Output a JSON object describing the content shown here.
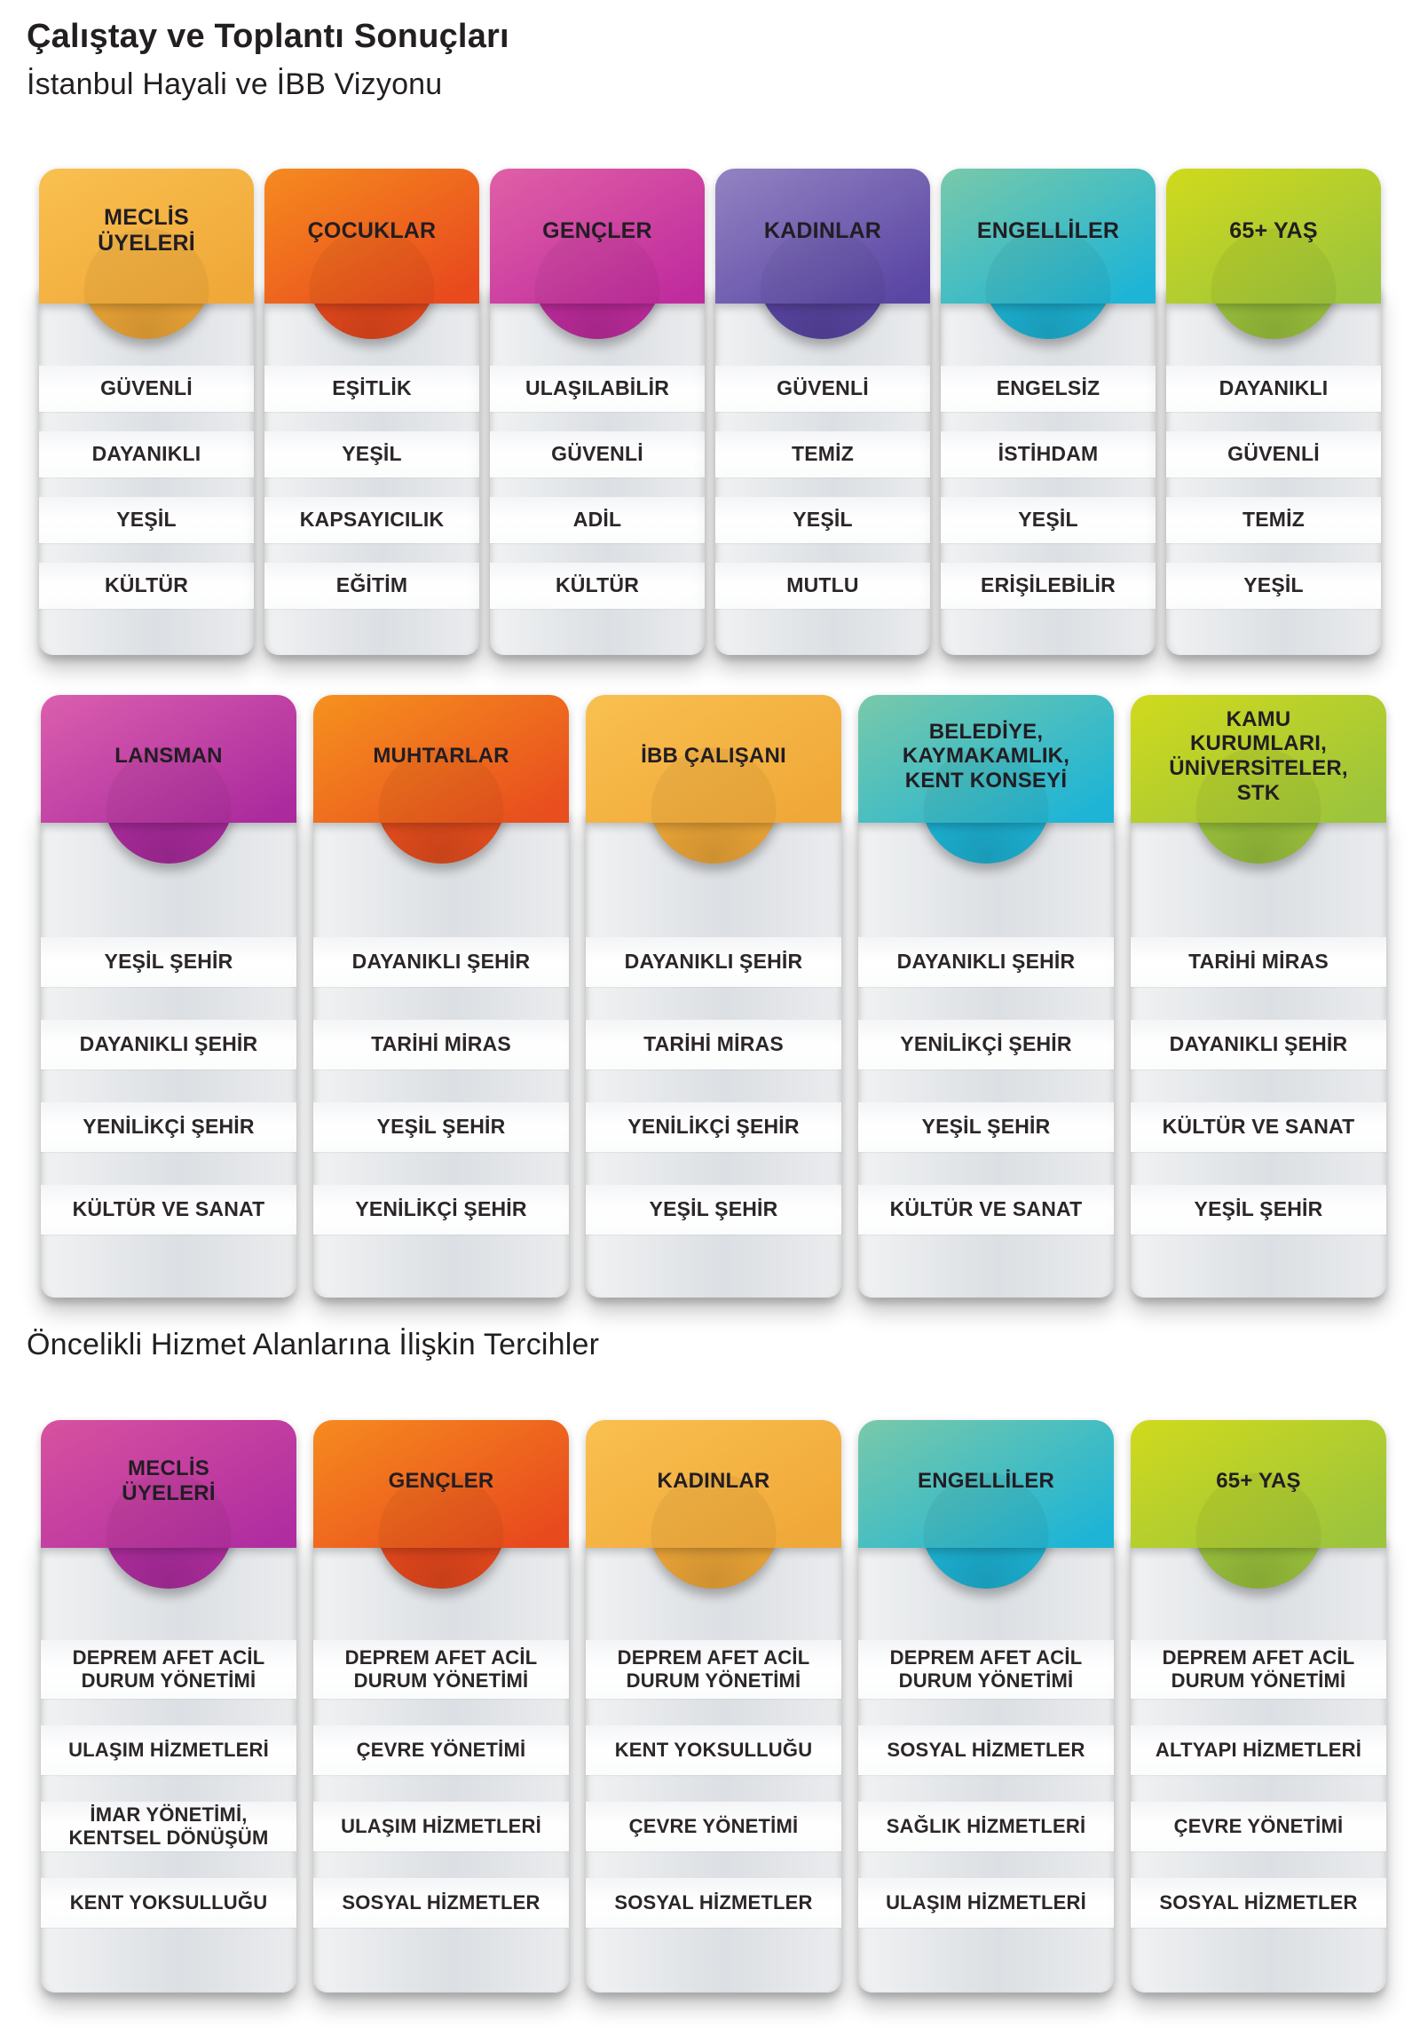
{
  "page": {
    "title": "Çalıştay ve Toplantı Sonuçları",
    "background": "#ffffff",
    "text_color": "#231f20"
  },
  "rows": [
    {
      "title": "İstanbul Hayali ve İBB Vizyonu",
      "cards": [
        {
          "title": "MECLİS\nÜYELERİ",
          "color_top": "#f9c050",
          "color_bottom": "#f0a838",
          "items": [
            "GÜVENLİ",
            "DAYANIKLI",
            "YEŞİL",
            "KÜLTÜR"
          ]
        },
        {
          "title": "ÇOCUKLAR",
          "color_top": "#f68b1f",
          "color_bottom": "#e8491d",
          "items": [
            "EŞİTLİK",
            "YEŞİL",
            "KAPSAYICILIK",
            "EĞİTİM"
          ]
        },
        {
          "title": "GENÇLER",
          "color_top": "#e060a6",
          "color_bottom": "#c02c9e",
          "items": [
            "ULAŞILABİLİR",
            "GÜVENLİ",
            "ADİL",
            "KÜLTÜR"
          ]
        },
        {
          "title": "KADINLAR",
          "color_top": "#9383c2",
          "color_bottom": "#5a46a4",
          "items": [
            "GÜVENLİ",
            "TEMİZ",
            "YEŞİL",
            "MUTLU"
          ]
        },
        {
          "title": "ENGELLİLER",
          "color_top": "#79c9a9",
          "color_bottom": "#1db4d6",
          "items": [
            "ENGELSİZ",
            "İSTİHDAM",
            "YEŞİL",
            "ERİŞİLEBİLİR"
          ]
        },
        {
          "title": "65+ YAŞ",
          "color_top": "#d0da1c",
          "color_bottom": "#9cc43d",
          "items": [
            "DAYANIKLI",
            "GÜVENLİ",
            "TEMİZ",
            "YEŞİL"
          ]
        }
      ]
    },
    {
      "title": "",
      "cards": [
        {
          "title": "LANSMAN",
          "color_top": "#db5fae",
          "color_bottom": "#ab2b9e",
          "items": [
            "YEŞİL ŞEHİR",
            "DAYANIKLI ŞEHİR",
            "YENİLİKÇİ ŞEHİR",
            "KÜLTÜR VE SANAT"
          ]
        },
        {
          "title": "MUHTARLAR",
          "color_top": "#f6921e",
          "color_bottom": "#e84e1e",
          "items": [
            "DAYANIKLI ŞEHİR",
            "TARİHİ MİRAS",
            "YEŞİL ŞEHİR",
            "YENİLİKÇİ ŞEHİR"
          ]
        },
        {
          "title": "İBB ÇALIŞANI",
          "color_top": "#f9c050",
          "color_bottom": "#f0a838",
          "items": [
            "DAYANIKLI ŞEHİR",
            "TARİHİ MİRAS",
            "YENİLİKÇİ ŞEHİR",
            "YEŞİL ŞEHİR"
          ]
        },
        {
          "title": "BELEDİYE,\nKAYMAKAMLIK,\nKENT KONSEYİ",
          "color_top": "#79c9a9",
          "color_bottom": "#1db4d6",
          "items": [
            "DAYANIKLI ŞEHİR",
            "YENİLİKÇİ ŞEHİR",
            "YEŞİL ŞEHİR",
            "KÜLTÜR VE SANAT"
          ]
        },
        {
          "title": "KAMU\nKURUMLARI,\nÜNİVERSİTELER,\nSTK",
          "color_top": "#d0da1c",
          "color_bottom": "#9cc43d",
          "items": [
            "TARİHİ MİRAS",
            "DAYANIKLI ŞEHİR",
            "KÜLTÜR VE SANAT",
            "YEŞİL ŞEHİR"
          ]
        }
      ]
    },
    {
      "title": "Öncelikli Hizmet Alanlarına İlişkin Tercihler",
      "cards": [
        {
          "title": "MECLİS\nÜYELERİ",
          "color_top": "#d8529f",
          "color_bottom": "#b02da1",
          "items": [
            "DEPREM AFET ACİL\nDURUM YÖNETİMİ",
            "ULAŞIM HİZMETLERİ",
            "İMAR YÖNETİMİ,\nKENTSEL DÖNÜŞÜM",
            "KENT YOKSULLUĞU"
          ]
        },
        {
          "title": "GENÇLER",
          "color_top": "#f68b1f",
          "color_bottom": "#e8491d",
          "items": [
            "DEPREM AFET ACİL\nDURUM YÖNETİMİ",
            "ÇEVRE YÖNETİMİ",
            "ULAŞIM HİZMETLERİ",
            "SOSYAL HİZMETLER"
          ]
        },
        {
          "title": "KADINLAR",
          "color_top": "#f9c050",
          "color_bottom": "#f0a838",
          "items": [
            "DEPREM AFET ACİL\nDURUM YÖNETİMİ",
            "KENT YOKSULLUĞU",
            "ÇEVRE YÖNETİMİ",
            "SOSYAL HİZMETLER"
          ]
        },
        {
          "title": "ENGELLİLER",
          "color_top": "#79c9a9",
          "color_bottom": "#1db4d6",
          "items": [
            "DEPREM AFET ACİL\nDURUM YÖNETİMİ",
            "SOSYAL HİZMETLER",
            "SAĞLIK HİZMETLERİ",
            "ULAŞIM HİZMETLERİ"
          ]
        },
        {
          "title": "65+ YAŞ",
          "color_top": "#d0da1c",
          "color_bottom": "#9cc43d",
          "items": [
            "DEPREM AFET ACİL\nDURUM YÖNETİMİ",
            "ALTYAPI HİZMETLERİ",
            "ÇEVRE YÖNETİMİ",
            "SOSYAL HİZMETLER"
          ]
        }
      ]
    }
  ]
}
